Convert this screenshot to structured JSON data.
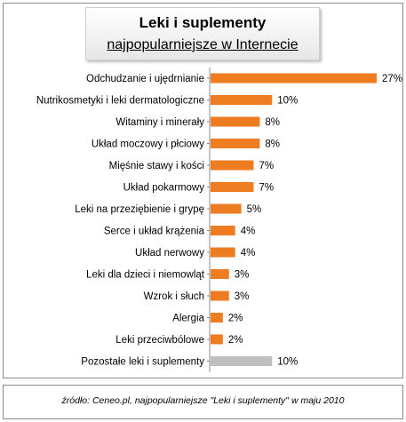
{
  "header": {
    "title": "Leki i suplementy",
    "subtitle": "najpopularniejsze w Internecie"
  },
  "footer": {
    "source": "źródło: Ceneo.pl,  najpopularniejsze  \"Leki i suplementy\"  w maju 2010"
  },
  "colors": {
    "highlight": "#ee7d22",
    "other": "#bfbfbf"
  },
  "chart_data": {
    "type": "bar",
    "orientation": "horizontal",
    "title": "Leki i suplementy",
    "subtitle": "najpopularniejsze w Internecie",
    "categories": [
      "Odchudzanie i ujędrnianie",
      "Nutrikosmetyki i leki dermatologiczne",
      "Witaminy i minerały",
      "Układ moczowy i płciowy",
      "Mięśnie stawy i kości",
      "Układ pokarmowy",
      "Leki na przeziębienie i grypę",
      "Serce i układ krążenia",
      "Układ nerwowy",
      "Leki dla dzieci i niemowląt",
      "Wzrok i słuch",
      "Alergia",
      "Leki przeciwbólowe",
      "Pozostałe leki i suplementy"
    ],
    "values": [
      27,
      10,
      8,
      8,
      7,
      7,
      5,
      4,
      4,
      3,
      3,
      2,
      2,
      10
    ],
    "data_labels": [
      "27%",
      "10%",
      "8%",
      "8%",
      "7%",
      "7%",
      "5%",
      "4%",
      "4%",
      "3%",
      "3%",
      "2%",
      "2%",
      "10%"
    ],
    "bar_colors": [
      "#ee7d22",
      "#ee7d22",
      "#ee7d22",
      "#ee7d22",
      "#ee7d22",
      "#ee7d22",
      "#ee7d22",
      "#ee7d22",
      "#ee7d22",
      "#ee7d22",
      "#ee7d22",
      "#ee7d22",
      "#ee7d22",
      "#bfbfbf"
    ],
    "unit": "%",
    "xlim": [
      0,
      27
    ],
    "grid": false,
    "legend": "none"
  }
}
